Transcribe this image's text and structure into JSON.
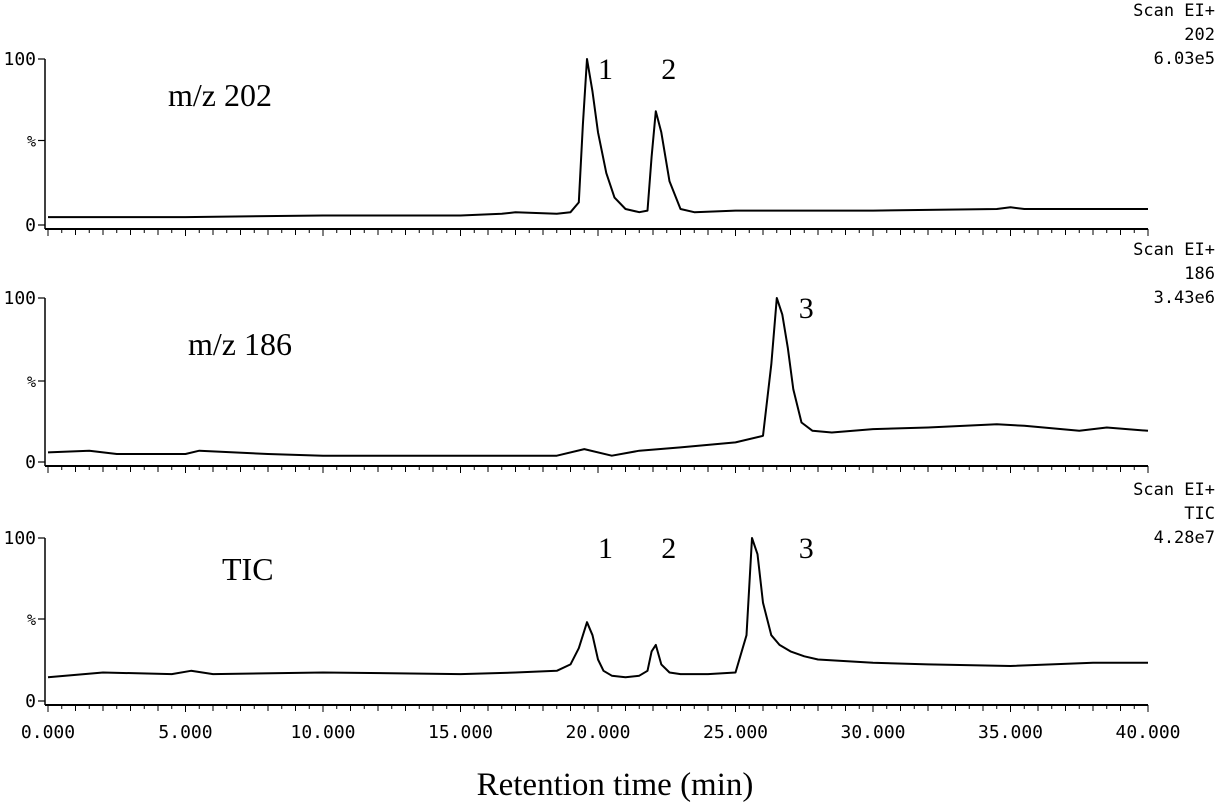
{
  "chart_data": {
    "type": "line",
    "xlabel": "Retention time (min)",
    "xlim": [
      0,
      40
    ],
    "x_tick_labels": [
      "0.000",
      "5.000",
      "10.000",
      "15.000",
      "20.000",
      "25.000",
      "30.000",
      "35.000",
      "40.000"
    ],
    "y_tick_labels": [
      "0",
      "%",
      "100"
    ],
    "ylim": [
      0,
      100
    ],
    "panels": [
      {
        "label": "m/z 202",
        "header": [
          "Scan EI+",
          "202",
          "6.03e5"
        ],
        "peak_labels": [
          {
            "text": "1",
            "x": 20.0
          },
          {
            "text": "2",
            "x": 22.3
          }
        ],
        "x": [
          0,
          5,
          10,
          15,
          16.5,
          17.0,
          18.5,
          19.0,
          19.3,
          19.45,
          19.6,
          19.8,
          20.0,
          20.3,
          20.6,
          21.0,
          21.5,
          21.8,
          21.95,
          22.1,
          22.3,
          22.6,
          23.0,
          23.5,
          25.0,
          30.0,
          34.5,
          35.0,
          35.5,
          40.0
        ],
        "y": [
          3,
          3,
          4,
          4,
          5,
          6,
          5,
          6,
          12,
          60,
          100,
          80,
          55,
          30,
          15,
          8,
          6,
          7,
          40,
          68,
          55,
          25,
          8,
          6,
          7,
          7,
          8,
          9,
          8,
          8
        ]
      },
      {
        "label": "m/z 186",
        "header": [
          "Scan EI+",
          "186",
          "3.43e6"
        ],
        "peak_labels": [
          {
            "text": "3",
            "x": 27.3
          }
        ],
        "x": [
          0,
          1.5,
          2.5,
          3,
          5,
          5.5,
          8,
          10,
          15,
          18.5,
          19.5,
          20.5,
          21.5,
          23,
          25.0,
          26.0,
          26.3,
          26.5,
          26.7,
          26.9,
          27.1,
          27.4,
          27.8,
          28.5,
          30,
          32,
          34.5,
          35.5,
          37.5,
          38.5,
          40
        ],
        "y": [
          7,
          8,
          6,
          6,
          6,
          8,
          6,
          5,
          5,
          5,
          9,
          5,
          8,
          10,
          13,
          17,
          60,
          100,
          90,
          70,
          45,
          25,
          20,
          19,
          21,
          22,
          24,
          23,
          20,
          22,
          20
        ]
      },
      {
        "label": "TIC",
        "header": [
          "Scan EI+",
          "TIC",
          "4.28e7"
        ],
        "peak_labels": [
          {
            "text": "1",
            "x": 20.0
          },
          {
            "text": "2",
            "x": 22.3
          },
          {
            "text": "3",
            "x": 27.3
          }
        ],
        "x": [
          0,
          2,
          4.5,
          5.2,
          6,
          10,
          15,
          17,
          18.5,
          19.0,
          19.3,
          19.6,
          19.8,
          20.0,
          20.2,
          20.5,
          21.0,
          21.5,
          21.8,
          21.95,
          22.1,
          22.3,
          22.6,
          23.0,
          24.0,
          25.0,
          25.4,
          25.6,
          25.8,
          26.0,
          26.3,
          26.6,
          27.0,
          27.5,
          28.0,
          29.0,
          30,
          32,
          35,
          38,
          40
        ],
        "y": [
          14,
          17,
          16,
          18,
          16,
          17,
          16,
          17,
          18,
          22,
          32,
          48,
          40,
          25,
          18,
          15,
          14,
          15,
          18,
          30,
          34,
          22,
          17,
          16,
          16,
          17,
          40,
          100,
          90,
          60,
          40,
          34,
          30,
          27,
          25,
          24,
          23,
          22,
          21,
          23,
          23
        ]
      }
    ]
  }
}
